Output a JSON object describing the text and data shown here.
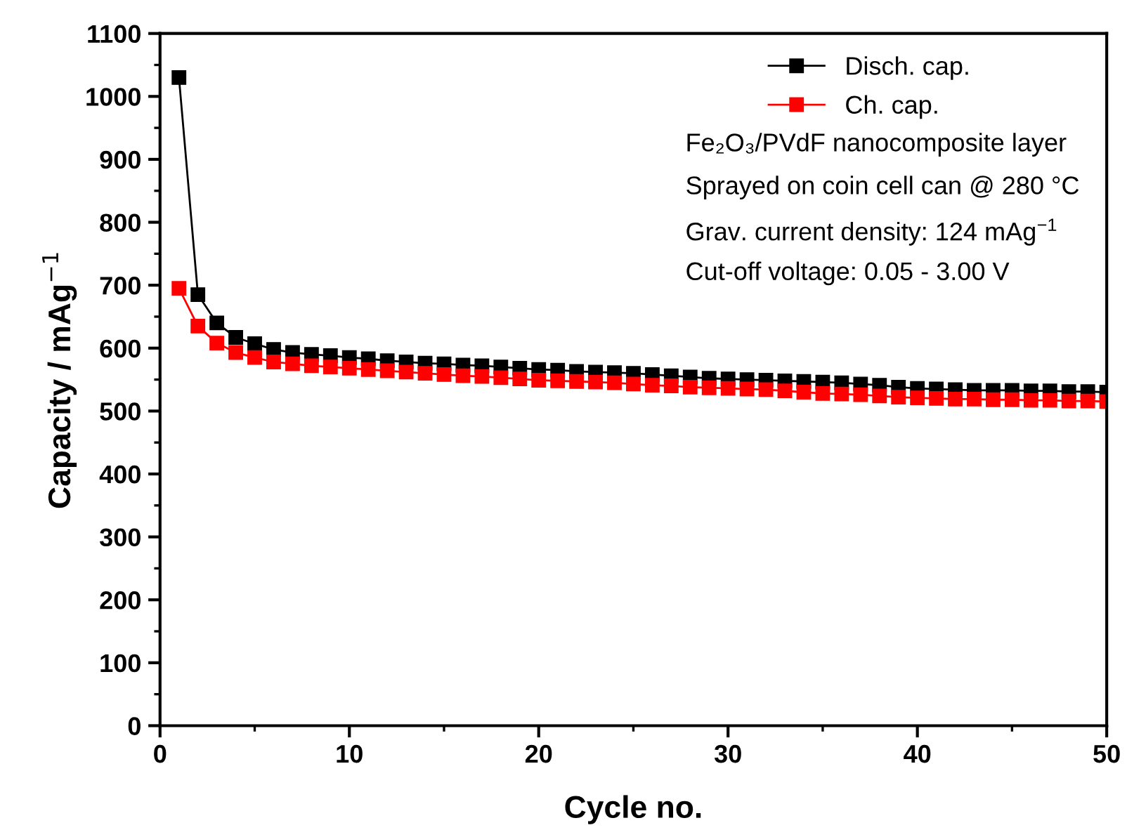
{
  "chart_data": {
    "type": "line",
    "xlabel": "Cycle no.",
    "ylabel": "Capacity / mAg$^{−1}$",
    "xlim": [
      0,
      50
    ],
    "ylim": [
      0,
      1100
    ],
    "xticks": [
      0,
      10,
      20,
      30,
      40,
      50
    ],
    "yticks": [
      0,
      100,
      200,
      300,
      400,
      500,
      600,
      700,
      800,
      900,
      1000,
      1100
    ],
    "marker": "square",
    "line_style": "solid",
    "grid": false,
    "legend": "top right",
    "x": [
      1,
      2,
      3,
      4,
      5,
      6,
      7,
      8,
      9,
      10,
      11,
      12,
      13,
      14,
      15,
      16,
      17,
      18,
      19,
      20,
      21,
      22,
      23,
      24,
      25,
      26,
      27,
      28,
      29,
      30,
      31,
      32,
      33,
      34,
      35,
      36,
      37,
      38,
      39,
      40,
      41,
      42,
      43,
      44,
      45,
      46,
      47,
      48,
      49,
      50
    ],
    "series": [
      {
        "name": "Disch. cap.",
        "color": "#000000",
        "values": [
          1030,
          685,
          640,
          617,
          607,
          598,
          593,
          590,
          588,
          585,
          583,
          580,
          578,
          576,
          575,
          573,
          572,
          570,
          568,
          566,
          565,
          563,
          562,
          561,
          560,
          558,
          556,
          554,
          552,
          551,
          550,
          549,
          548,
          547,
          546,
          545,
          543,
          541,
          538,
          536,
          535,
          534,
          533,
          533,
          533,
          532,
          532,
          531,
          531,
          530
        ]
      },
      {
        "name": "Ch. cap.",
        "color": "#ff0000",
        "values": [
          695,
          635,
          608,
          593,
          585,
          578,
          575,
          572,
          570,
          568,
          566,
          564,
          562,
          560,
          558,
          556,
          555,
          553,
          551,
          549,
          548,
          547,
          546,
          545,
          543,
          541,
          540,
          538,
          537,
          536,
          535,
          534,
          532,
          530,
          528,
          527,
          526,
          524,
          522,
          521,
          520,
          519,
          519,
          518,
          518,
          517,
          517,
          516,
          516,
          515
        ]
      }
    ],
    "annotations": [
      "Fe₂O₃/PVdF nanocomposite layer",
      "Sprayed on coin cell can @ 280 °C",
      "Grav. current density: 124 mAg$^{−1}$",
      "Cut-off voltage: 0.05 - 3.00 V"
    ]
  }
}
